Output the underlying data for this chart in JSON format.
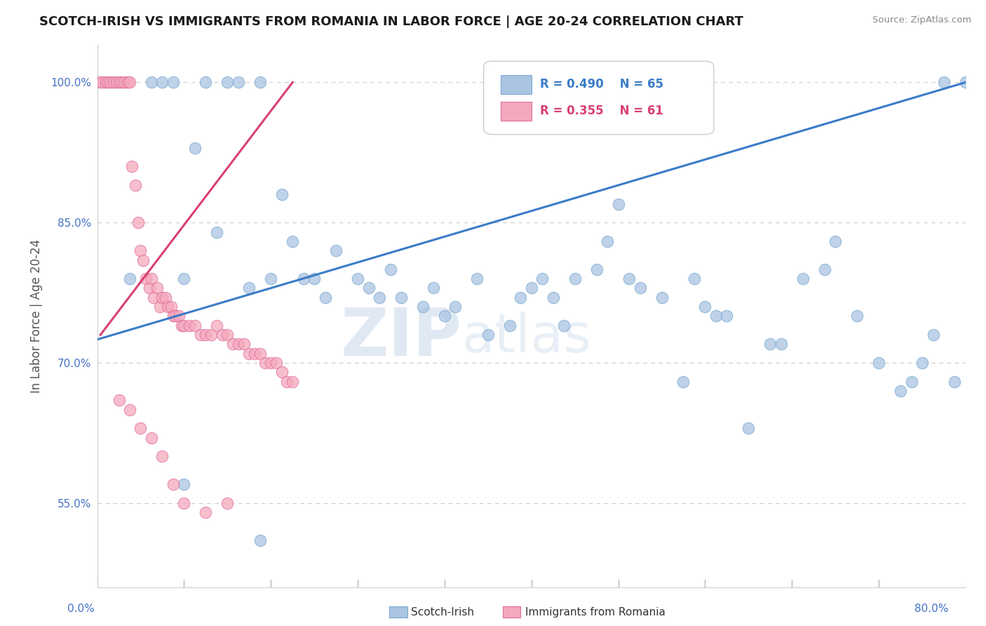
{
  "title": "SCOTCH-IRISH VS IMMIGRANTS FROM ROMANIA IN LABOR FORCE | AGE 20-24 CORRELATION CHART",
  "source": "Source: ZipAtlas.com",
  "ylabel": "In Labor Force | Age 20-24",
  "yticks": [
    55.0,
    70.0,
    85.0,
    100.0
  ],
  "ytick_labels": [
    "55.0%",
    "70.0%",
    "85.0%",
    "100.0%"
  ],
  "xrange": [
    0.0,
    80.0
  ],
  "yrange": [
    46.0,
    104.0
  ],
  "legend_blue_r": "R = 0.490",
  "legend_blue_n": "N = 65",
  "legend_pink_r": "R = 0.355",
  "legend_pink_n": "N = 61",
  "blue_color": "#aac4e2",
  "pink_color": "#f5a8bc",
  "trend_blue_color": "#3a7cc7",
  "trend_pink_color": "#d94070",
  "blue_edge_color": "#7aaad0",
  "pink_edge_color": "#e070a0",
  "watermark_zip": "ZIP",
  "watermark_atlas": "atlas",
  "blue_x": [
    3.0,
    5.0,
    6.0,
    7.0,
    8.0,
    9.0,
    10.0,
    11.0,
    12.0,
    13.0,
    14.0,
    15.0,
    16.0,
    17.0,
    18.0,
    19.0,
    20.0,
    21.0,
    22.0,
    24.0,
    25.0,
    26.0,
    27.0,
    28.0,
    30.0,
    31.0,
    32.0,
    33.0,
    35.0,
    36.0,
    38.0,
    39.0,
    40.0,
    41.0,
    42.0,
    43.0,
    44.0,
    46.0,
    47.0,
    48.0,
    49.0,
    50.0,
    52.0,
    54.0,
    55.0,
    56.0,
    57.0,
    58.0,
    60.0,
    62.0,
    63.0,
    65.0,
    67.0,
    68.0,
    70.0,
    72.0,
    74.0,
    75.0,
    76.0,
    77.0,
    78.0,
    79.0,
    80.0,
    8.0,
    15.0
  ],
  "blue_y": [
    79.0,
    100.0,
    100.0,
    100.0,
    79.0,
    93.0,
    100.0,
    84.0,
    100.0,
    100.0,
    78.0,
    100.0,
    79.0,
    88.0,
    83.0,
    79.0,
    79.0,
    77.0,
    82.0,
    79.0,
    78.0,
    77.0,
    80.0,
    77.0,
    76.0,
    78.0,
    75.0,
    76.0,
    79.0,
    73.0,
    74.0,
    77.0,
    78.0,
    79.0,
    77.0,
    74.0,
    79.0,
    80.0,
    83.0,
    87.0,
    79.0,
    78.0,
    77.0,
    68.0,
    79.0,
    76.0,
    75.0,
    75.0,
    63.0,
    72.0,
    72.0,
    79.0,
    80.0,
    83.0,
    75.0,
    70.0,
    67.0,
    68.0,
    70.0,
    73.0,
    100.0,
    68.0,
    100.0,
    57.0,
    51.0
  ],
  "pink_x": [
    0.3,
    0.5,
    0.8,
    1.0,
    1.2,
    1.5,
    1.8,
    2.0,
    2.2,
    2.5,
    2.8,
    3.0,
    3.2,
    3.5,
    3.8,
    4.0,
    4.2,
    4.5,
    4.8,
    5.0,
    5.2,
    5.5,
    5.8,
    6.0,
    6.3,
    6.5,
    6.8,
    7.0,
    7.2,
    7.5,
    7.8,
    8.0,
    8.5,
    9.0,
    9.5,
    10.0,
    10.5,
    11.0,
    11.5,
    12.0,
    12.5,
    13.0,
    13.5,
    14.0,
    14.5,
    15.0,
    15.5,
    16.0,
    16.5,
    17.0,
    17.5,
    18.0,
    2.0,
    3.0,
    4.0,
    5.0,
    6.0,
    7.0,
    8.0,
    10.0,
    12.0
  ],
  "pink_y": [
    100.0,
    100.0,
    100.0,
    100.0,
    100.0,
    100.0,
    100.0,
    100.0,
    100.0,
    100.0,
    100.0,
    100.0,
    91.0,
    89.0,
    85.0,
    82.0,
    81.0,
    79.0,
    78.0,
    79.0,
    77.0,
    78.0,
    76.0,
    77.0,
    77.0,
    76.0,
    76.0,
    75.0,
    75.0,
    75.0,
    74.0,
    74.0,
    74.0,
    74.0,
    73.0,
    73.0,
    73.0,
    74.0,
    73.0,
    73.0,
    72.0,
    72.0,
    72.0,
    71.0,
    71.0,
    71.0,
    70.0,
    70.0,
    70.0,
    69.0,
    68.0,
    68.0,
    66.0,
    65.0,
    63.0,
    62.0,
    60.0,
    57.0,
    55.0,
    54.0,
    55.0
  ],
  "blue_trend_x0": 0.0,
  "blue_trend_y0": 72.5,
  "blue_trend_x1": 80.0,
  "blue_trend_y1": 100.0,
  "pink_trend_x0": 0.3,
  "pink_trend_y0": 73.0,
  "pink_trend_x1": 18.0,
  "pink_trend_y1": 100.0
}
